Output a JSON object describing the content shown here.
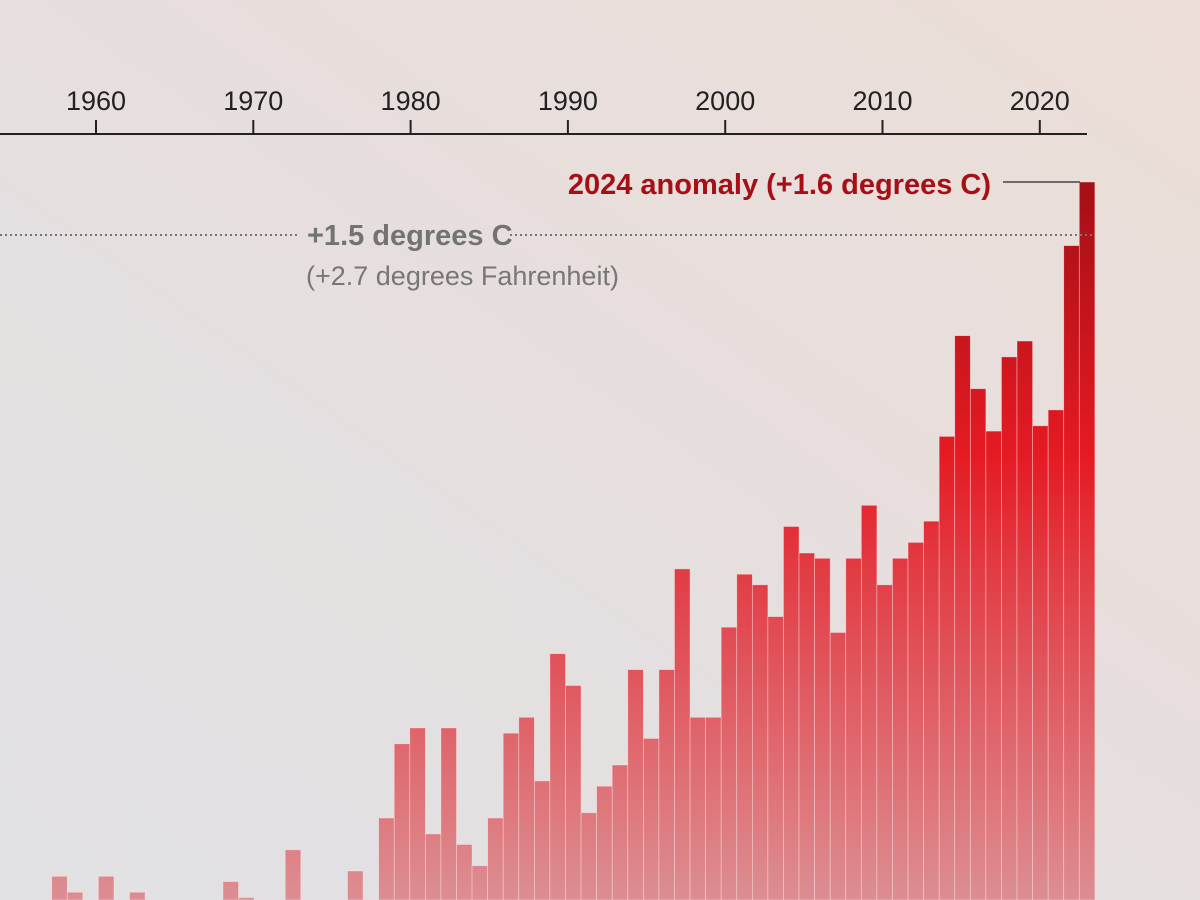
{
  "chart_data": {
    "type": "bar",
    "title": "",
    "xlabel": "",
    "ylabel": "",
    "x_ticks": [
      1960,
      1970,
      1980,
      1990,
      2000,
      2010,
      2020
    ],
    "x_tick_labels": [
      "1960",
      "1970",
      "1980",
      "1990",
      "2000",
      "2010",
      "2020"
    ],
    "ylim": [
      0.245,
      1.6
    ],
    "grid": false,
    "years": [
      1958,
      1959,
      1961,
      1963,
      1969,
      1970,
      1973,
      1977,
      1979,
      1980,
      1981,
      1982,
      1983,
      1984,
      1985,
      1986,
      1987,
      1988,
      1989,
      1990,
      1991,
      1992,
      1993,
      1994,
      1995,
      1996,
      1997,
      1998,
      1999,
      2000,
      2001,
      2002,
      2003,
      2004,
      2005,
      2006,
      2007,
      2008,
      2009,
      2010,
      2011,
      2012,
      2013,
      2014,
      2015,
      2016,
      2017,
      2018,
      2019,
      2020,
      2021,
      2022,
      2023,
      2024
    ],
    "values": [
      0.29,
      0.26,
      0.29,
      0.26,
      0.28,
      0.25,
      0.34,
      0.3,
      0.4,
      0.54,
      0.57,
      0.37,
      0.57,
      0.35,
      0.31,
      0.4,
      0.56,
      0.59,
      0.47,
      0.71,
      0.65,
      0.41,
      0.46,
      0.5,
      0.68,
      0.55,
      0.68,
      0.87,
      0.59,
      0.59,
      0.76,
      0.86,
      0.84,
      0.78,
      0.95,
      0.9,
      0.89,
      0.75,
      0.89,
      0.99,
      0.84,
      0.89,
      0.92,
      0.96,
      1.12,
      1.31,
      1.21,
      1.13,
      1.27,
      1.3,
      1.14,
      1.17,
      1.48,
      1.6
    ],
    "units": "degrees C",
    "reference_line": {
      "value": 1.5,
      "label": "+1.5 degrees C",
      "sublabel": "(+2.7 degrees Fahrenheit)"
    },
    "annotations": [
      {
        "year": 2024,
        "value": 1.6,
        "text": "2024 anomaly (+1.6 degrees C)"
      }
    ],
    "colors": {
      "bar_top": "#a50f15",
      "bar_mid": "#e51a23",
      "bar_bottom": "#dc8e92",
      "annotation": "#a50f15",
      "reference": "#737373",
      "axis": "#222222"
    }
  }
}
